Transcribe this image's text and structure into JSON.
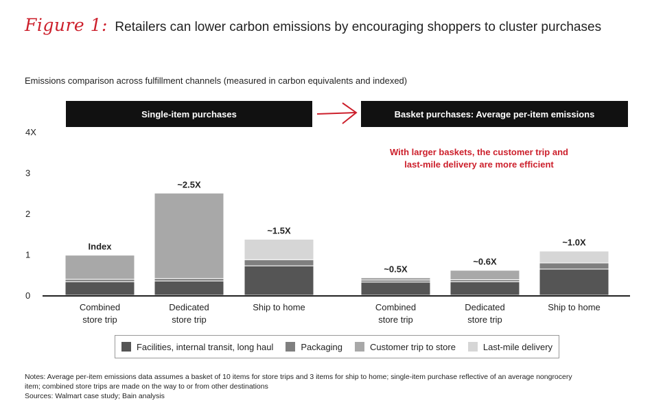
{
  "header": {
    "figure_label": "Figure 1:",
    "title": "Retailers can lower carbon emissions by encouraging shoppers to cluster purchases"
  },
  "subtitle": "Emissions comparison across fulfillment channels (measured in carbon equivalents and indexed)",
  "banners": {
    "single": "Single-item purchases",
    "basket": "Basket purchases: Average per-item emissions"
  },
  "annotation": {
    "line1": "With larger baskets, the customer trip and",
    "line2": "last-mile delivery are more efficient"
  },
  "colors": {
    "facilities": "#555555",
    "packaging": "#7f7f7f",
    "customer_trip": "#a8a8a8",
    "last_mile": "#d6d6d6",
    "accent": "#cc1f2b"
  },
  "legend": [
    {
      "label": "Facilities, internal transit, long haul",
      "color": "#555555"
    },
    {
      "label": "Packaging",
      "color": "#7f7f7f"
    },
    {
      "label": "Customer trip to store",
      "color": "#a8a8a8"
    },
    {
      "label": "Last-mile delivery",
      "color": "#d6d6d6"
    }
  ],
  "chart_data": {
    "type": "bar",
    "stacked": true,
    "title": "Emissions comparison across fulfillment channels (measured in carbon equivalents and indexed)",
    "ylim": [
      0,
      4
    ],
    "yticks": [
      "0",
      "1",
      "2",
      "3",
      "4X"
    ],
    "groups": [
      "Single-item purchases",
      "Basket purchases: Average per-item emissions"
    ],
    "categories": [
      {
        "line1": "Combined",
        "line2": "store trip",
        "group": 0
      },
      {
        "line1": "Dedicated",
        "line2": "store trip",
        "group": 0
      },
      {
        "line1": "Ship to home",
        "line2": "",
        "group": 0
      },
      {
        "line1": "Combined",
        "line2": "store trip",
        "group": 1
      },
      {
        "line1": "Dedicated",
        "line2": "store trip",
        "group": 1
      },
      {
        "line1": "Ship to home",
        "line2": "",
        "group": 1
      }
    ],
    "series": [
      {
        "name": "Facilities, internal transit, long haul",
        "values": [
          0.33,
          0.35,
          0.72,
          0.32,
          0.33,
          0.64
        ]
      },
      {
        "name": "Packaging",
        "values": [
          0.06,
          0.06,
          0.15,
          0.05,
          0.05,
          0.15
        ]
      },
      {
        "name": "Customer trip to store",
        "values": [
          0.59,
          2.09,
          0.0,
          0.06,
          0.23,
          0.0
        ]
      },
      {
        "name": "Last-mile delivery",
        "values": [
          0.0,
          0.0,
          0.5,
          0.0,
          0.0,
          0.29
        ]
      }
    ],
    "data_labels": [
      "Index",
      "~2.5X",
      "~1.5X",
      "~0.5X",
      "~0.6X",
      "~1.0X"
    ]
  },
  "notes": {
    "line1": "Notes: Average per-item emissions data assumes a basket of 10 items for store trips and 3 items for ship to home; single-item purchase reflective of an average nongrocery",
    "line2": "item; combined store trips are made on the way to or from other destinations",
    "line3": "Sources: Walmart case study; Bain analysis"
  }
}
